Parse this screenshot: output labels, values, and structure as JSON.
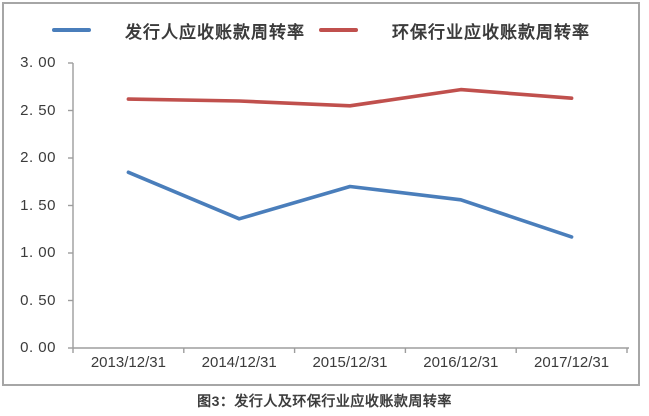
{
  "chart_data": {
    "type": "line",
    "title": "",
    "categories": [
      "2013/12/31",
      "2014/12/31",
      "2015/12/31",
      "2016/12/31",
      "2017/12/31"
    ],
    "series": [
      {
        "name": "发行人应收账款周转率",
        "color": "#4a7ebb",
        "values": [
          1.85,
          1.36,
          1.7,
          1.56,
          1.17
        ]
      },
      {
        "name": "环保行业应收账款周转率",
        "color": "#c0504d",
        "values": [
          2.62,
          2.6,
          2.55,
          2.72,
          2.63
        ]
      }
    ],
    "xlabel": "",
    "ylabel": "",
    "ylim": [
      0,
      3
    ],
    "y_tick_interval": 0.5,
    "y_tick_labels_top_down": [
      "3. 00",
      "2. 50",
      "2. 00",
      "1. 50",
      "1. 00",
      "0. 50",
      "0. 00"
    ],
    "grid": false,
    "legend_position": "top"
  },
  "legend": {
    "items": [
      {
        "label": "发行人应收账款周转率",
        "color": "#4a7ebb"
      },
      {
        "label": "环保行业应收账款周转率",
        "color": "#c0504d"
      }
    ]
  },
  "caption": "图3：发行人及环保行业应收账款周转率",
  "colors": {
    "series_blue": "#4a7ebb",
    "series_red": "#c0504d",
    "axis_line": "#9d9d9d",
    "text": "#3b3b3b",
    "frame_border": "#a6a6a6"
  }
}
